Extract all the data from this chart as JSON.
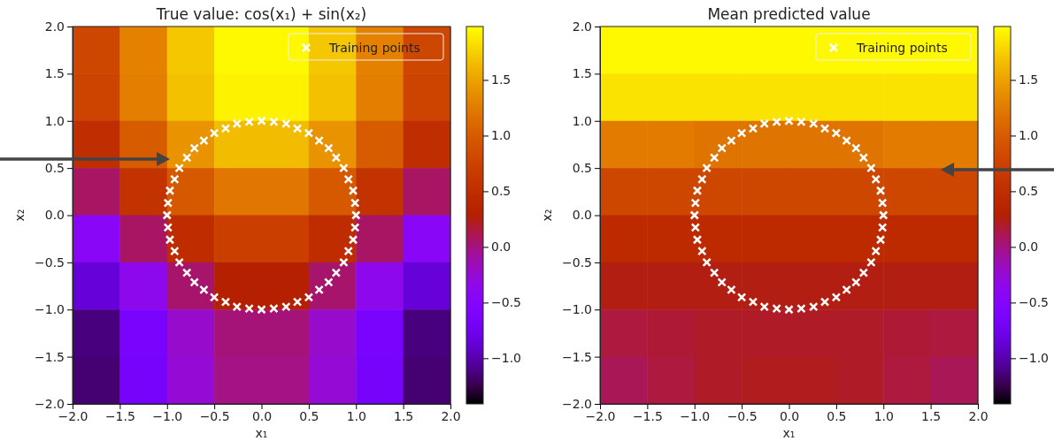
{
  "chart_data": [
    {
      "type": "heatmap",
      "title": "True value: cos(x₁) + sin(x₂)",
      "xlabel": "x₁",
      "ylabel": "x₂",
      "xlim": [
        -2,
        2
      ],
      "ylim": [
        -2,
        2
      ],
      "xticks": [
        {
          "value": -2,
          "label": "−2.0"
        },
        {
          "value": -1.5,
          "label": "−1.5"
        },
        {
          "value": -1,
          "label": "−1.0"
        },
        {
          "value": -0.5,
          "label": "−0.5"
        },
        {
          "value": 0,
          "label": "0.0"
        },
        {
          "value": 0.5,
          "label": "0.5"
        },
        {
          "value": 1,
          "label": "1.0"
        },
        {
          "value": 1.5,
          "label": "1.5"
        },
        {
          "value": 2,
          "label": "2.0"
        }
      ],
      "yticks": [
        {
          "value": -2,
          "label": "−2.0"
        },
        {
          "value": -1.5,
          "label": "−1.5"
        },
        {
          "value": -1,
          "label": "−1.0"
        },
        {
          "value": -0.5,
          "label": "−0.5"
        },
        {
          "value": 0,
          "label": "0.0"
        },
        {
          "value": 0.5,
          "label": "0.5"
        },
        {
          "value": 1,
          "label": "1.0"
        },
        {
          "value": 1.5,
          "label": "1.5"
        },
        {
          "value": 2,
          "label": "2.0"
        }
      ],
      "clim": [
        -1.41,
        1.98
      ],
      "cticks": [
        {
          "value": -1,
          "label": "−1.0"
        },
        {
          "value": -0.5,
          "label": "−0.5"
        },
        {
          "value": 0,
          "label": "0.0"
        },
        {
          "value": 0.5,
          "label": "0.5"
        },
        {
          "value": 1,
          "label": "1.0"
        },
        {
          "value": 1.5,
          "label": "1.5"
        }
      ],
      "cells": [
        [
          0.8,
          1.3,
          1.71,
          1.95,
          1.95,
          1.71,
          1.3,
          0.8
        ],
        [
          0.77,
          1.27,
          1.68,
          1.92,
          1.92,
          1.68,
          1.27,
          0.77
        ],
        [
          0.5,
          1.0,
          1.41,
          1.65,
          1.65,
          1.41,
          1.0,
          0.5
        ],
        [
          0.07,
          0.57,
          0.98,
          1.22,
          1.22,
          0.98,
          0.57,
          0.07
        ],
        [
          -0.43,
          0.07,
          0.48,
          0.72,
          0.72,
          0.48,
          0.07,
          -0.43
        ],
        [
          -0.86,
          -0.36,
          0.05,
          0.29,
          0.29,
          0.05,
          -0.36,
          -0.86
        ],
        [
          -1.13,
          -0.63,
          -0.22,
          0.02,
          0.02,
          -0.22,
          -0.63,
          -1.13
        ],
        [
          -1.16,
          -0.66,
          -0.25,
          -0.01,
          -0.01,
          -0.25,
          -0.66,
          -1.16
        ]
      ],
      "series": [
        {
          "type": "scatter",
          "name": "Training points",
          "color": "#ffffff",
          "x": [
            1,
            0.99,
            0.97,
            0.92,
            0.87,
            0.79,
            0.71,
            0.61,
            0.5,
            0.38,
            0.26,
            0.13,
            0,
            -0.13,
            -0.26,
            -0.38,
            -0.5,
            -0.61,
            -0.71,
            -0.79,
            -0.87,
            -0.92,
            -0.97,
            -0.99,
            -1,
            -0.99,
            -0.97,
            -0.92,
            -0.87,
            -0.79,
            -0.71,
            -0.61,
            -0.5,
            -0.38,
            -0.26,
            -0.13,
            0,
            0.13,
            0.26,
            0.38,
            0.5,
            0.61,
            0.71,
            0.79,
            0.87,
            0.92,
            0.97,
            0.99
          ],
          "values": [
            0,
            0.13,
            0.26,
            0.38,
            0.5,
            0.61,
            0.71,
            0.79,
            0.87,
            0.92,
            0.97,
            0.99,
            1,
            0.99,
            0.97,
            0.92,
            0.87,
            0.79,
            0.71,
            0.61,
            0.5,
            0.38,
            0.26,
            0.13,
            0,
            -0.13,
            -0.26,
            -0.38,
            -0.5,
            -0.61,
            -0.71,
            -0.79,
            -0.87,
            -0.92,
            -0.97,
            -0.99,
            -1,
            -0.99,
            -0.97,
            -0.92,
            -0.87,
            -0.79,
            -0.71,
            -0.61,
            -0.5,
            -0.38,
            -0.26,
            -0.13
          ]
        }
      ],
      "marker": "cross",
      "legend": "top right"
    },
    {
      "type": "heatmap",
      "title": "Mean predicted value",
      "xlabel": "x₁",
      "ylabel": "x₂",
      "xlim": [
        -2,
        2
      ],
      "ylim": [
        -2,
        2
      ],
      "xticks": [
        {
          "value": -2,
          "label": "−2.0"
        },
        {
          "value": -1.5,
          "label": "−1.5"
        },
        {
          "value": -1,
          "label": "−1.0"
        },
        {
          "value": -0.5,
          "label": "−0.5"
        },
        {
          "value": 0,
          "label": "0.0"
        },
        {
          "value": 0.5,
          "label": "0.5"
        },
        {
          "value": 1,
          "label": "1.0"
        },
        {
          "value": 1.5,
          "label": "1.5"
        },
        {
          "value": 2,
          "label": "2.0"
        }
      ],
      "yticks": [
        {
          "value": -2,
          "label": "−2.0"
        },
        {
          "value": -1.5,
          "label": "−1.5"
        },
        {
          "value": -1,
          "label": "−1.0"
        },
        {
          "value": -0.5,
          "label": "−0.5"
        },
        {
          "value": 0,
          "label": "0.0"
        },
        {
          "value": 0.5,
          "label": "0.5"
        },
        {
          "value": 1,
          "label": "1.0"
        },
        {
          "value": 1.5,
          "label": "1.5"
        },
        {
          "value": 2,
          "label": "2.0"
        }
      ],
      "clim": [
        -1.41,
        1.98
      ],
      "cticks": [
        {
          "value": -1,
          "label": "−1.0"
        },
        {
          "value": -0.5,
          "label": "−0.5"
        },
        {
          "value": 0,
          "label": "0.0"
        },
        {
          "value": 0.5,
          "label": "0.5"
        },
        {
          "value": 1,
          "label": "1.0"
        },
        {
          "value": 1.5,
          "label": "1.5"
        }
      ],
      "cells": [
        [
          1.95,
          1.95,
          1.95,
          1.95,
          1.95,
          1.95,
          1.95,
          1.95
        ],
        [
          1.85,
          1.85,
          1.85,
          1.85,
          1.85,
          1.85,
          1.85,
          1.85
        ],
        [
          1.25,
          1.25,
          1.2,
          1.2,
          1.2,
          1.2,
          1.25,
          1.25
        ],
        [
          0.8,
          0.8,
          0.8,
          0.8,
          0.8,
          0.8,
          0.8,
          0.8
        ],
        [
          0.45,
          0.45,
          0.45,
          0.45,
          0.45,
          0.45,
          0.45,
          0.45
        ],
        [
          0.25,
          0.25,
          0.25,
          0.25,
          0.25,
          0.25,
          0.25,
          0.25
        ],
        [
          0.15,
          0.17,
          0.2,
          0.2,
          0.2,
          0.2,
          0.17,
          0.15
        ],
        [
          0.1,
          0.15,
          0.2,
          0.22,
          0.22,
          0.2,
          0.15,
          0.1
        ]
      ],
      "series": [
        {
          "type": "scatter",
          "name": "Training points",
          "color": "#ffffff",
          "x": [
            1,
            0.99,
            0.97,
            0.92,
            0.87,
            0.79,
            0.71,
            0.61,
            0.5,
            0.38,
            0.26,
            0.13,
            0,
            -0.13,
            -0.26,
            -0.38,
            -0.5,
            -0.61,
            -0.71,
            -0.79,
            -0.87,
            -0.92,
            -0.97,
            -0.99,
            -1,
            -0.99,
            -0.97,
            -0.92,
            -0.87,
            -0.79,
            -0.71,
            -0.61,
            -0.5,
            -0.38,
            -0.26,
            -0.13,
            0,
            0.13,
            0.26,
            0.38,
            0.5,
            0.61,
            0.71,
            0.79,
            0.87,
            0.92,
            0.97,
            0.99
          ],
          "values": [
            0,
            0.13,
            0.26,
            0.38,
            0.5,
            0.61,
            0.71,
            0.79,
            0.87,
            0.92,
            0.97,
            0.99,
            1,
            0.99,
            0.97,
            0.92,
            0.87,
            0.79,
            0.71,
            0.61,
            0.5,
            0.38,
            0.26,
            0.13,
            0,
            -0.13,
            -0.26,
            -0.38,
            -0.5,
            -0.61,
            -0.71,
            -0.79,
            -0.87,
            -0.92,
            -0.97,
            -0.99,
            -1,
            -0.99,
            -0.97,
            -0.92,
            -0.87,
            -0.79,
            -0.71,
            -0.61,
            -0.5,
            -0.38,
            -0.26,
            -0.13
          ]
        }
      ],
      "marker": "cross",
      "legend": "top right"
    }
  ]
}
